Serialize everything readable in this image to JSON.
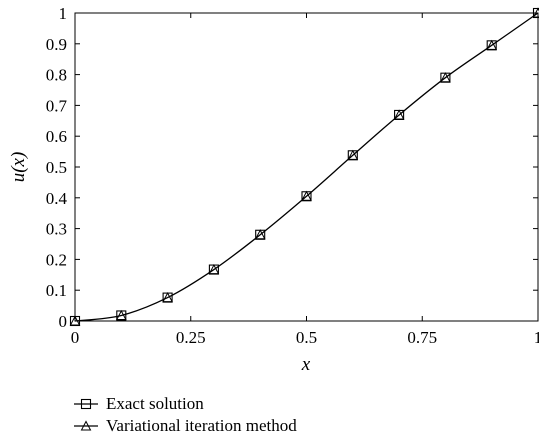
{
  "chart_data": {
    "type": "line",
    "xlabel": "x",
    "ylabel": "u(x)",
    "xlim": [
      0,
      1
    ],
    "ylim": [
      0,
      1
    ],
    "x_ticks": [
      0,
      0.25,
      0.5,
      0.75,
      1
    ],
    "x_tick_labels": [
      "0",
      "0.25",
      "0.5",
      "0.75",
      "1"
    ],
    "y_ticks": [
      0,
      0.1,
      0.2,
      0.3,
      0.4,
      0.5,
      0.6,
      0.7,
      0.8,
      0.9,
      1
    ],
    "y_tick_labels": [
      "0",
      "0.1",
      "0.2",
      "0.3",
      "0.4",
      "0.5",
      "0.6",
      "0.7",
      "0.8",
      "0.9",
      "1"
    ],
    "grid": false,
    "legend_position": "below",
    "series": [
      {
        "name": "Exact solution",
        "marker": "square",
        "x": [
          0,
          0.1,
          0.2,
          0.3,
          0.4,
          0.5,
          0.6,
          0.7,
          0.8,
          0.9,
          1
        ],
        "y": [
          0,
          0.018,
          0.076,
          0.167,
          0.28,
          0.405,
          0.538,
          0.669,
          0.79,
          0.895,
          1
        ]
      },
      {
        "name": "Variational iteration method",
        "marker": "triangle",
        "x": [
          0,
          0.1,
          0.2,
          0.3,
          0.4,
          0.5,
          0.6,
          0.7,
          0.8,
          0.9,
          1
        ],
        "y": [
          0,
          0.018,
          0.076,
          0.167,
          0.28,
          0.405,
          0.538,
          0.669,
          0.79,
          0.895,
          1
        ]
      }
    ]
  }
}
